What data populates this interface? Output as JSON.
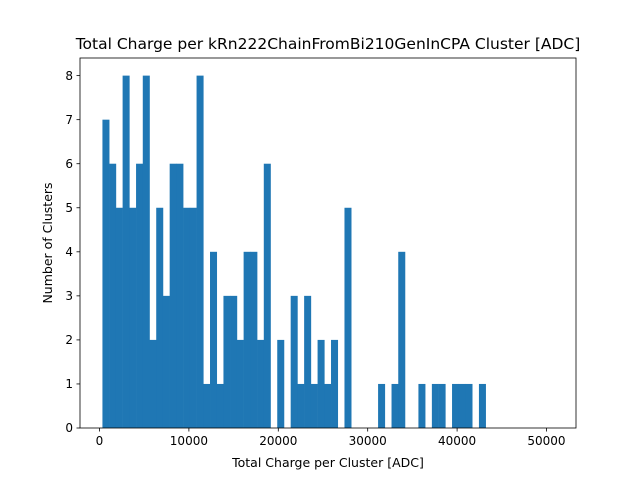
{
  "chart_data": {
    "type": "bar",
    "subtype": "histogram",
    "title": "Total Charge per kRn222ChainFromBi210GenInCPA Cluster [ADC]",
    "xlabel": "Total Charge per Cluster [ADC]",
    "ylabel": "Number of Clusters",
    "xlim": [
      -2180,
      53300
    ],
    "ylim": [
      0,
      8.4
    ],
    "xticks": [
      0,
      10000,
      20000,
      30000,
      40000,
      50000
    ],
    "xtick_labels": [
      "0",
      "10000",
      "20000",
      "30000",
      "40000",
      "50000"
    ],
    "yticks": [
      0,
      1,
      2,
      3,
      4,
      5,
      6,
      7,
      8
    ],
    "ytick_labels": [
      "0",
      "1",
      "2",
      "3",
      "4",
      "5",
      "6",
      "7",
      "8"
    ],
    "bin_start": 330,
    "bin_width": 752,
    "values": [
      7,
      6,
      5,
      8,
      5,
      6,
      8,
      2,
      5,
      3,
      6,
      6,
      5,
      5,
      8,
      1,
      4,
      1,
      3,
      3,
      2,
      4,
      4,
      2,
      6,
      0,
      2,
      0,
      3,
      1,
      3,
      1,
      2,
      1,
      2,
      0,
      5,
      0,
      0,
      0,
      0,
      1,
      0,
      1,
      4,
      0,
      0,
      1,
      0,
      1,
      1,
      0,
      1,
      1,
      1,
      0,
      1,
      0,
      0,
      0,
      0,
      0,
      0,
      0,
      0,
      0,
      0
    ],
    "bar_color": "#1f77b4",
    "grid": false,
    "legend": "none"
  }
}
